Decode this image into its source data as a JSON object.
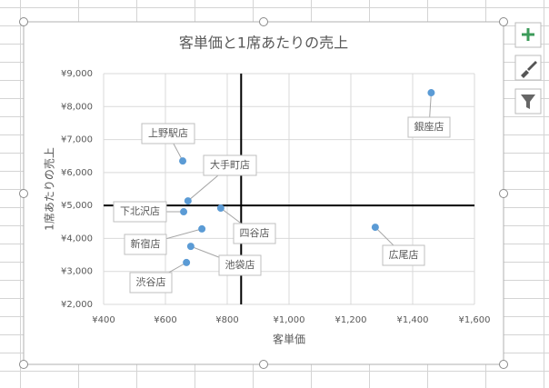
{
  "chart_data": {
    "type": "scatter",
    "title": "客単価と1席あたりの売上",
    "x_label": "客単価",
    "y_label": "1席あたりの売上",
    "point_labels": [
      "銀座店",
      "上野駅店",
      "大手町店",
      "下北沢店",
      "四谷店",
      "新宿店",
      "池袋店",
      "渋谷店",
      "広尾店"
    ],
    "x": [
      1460,
      656,
      673,
      659,
      779,
      718,
      682,
      668,
      1279
    ],
    "values": [
      8420,
      6350,
      5140,
      4810,
      4920,
      4290,
      3760,
      3270,
      4340
    ],
    "color": "#5b9bd5",
    "xlim": [
      400,
      1600
    ],
    "ylim": [
      2000,
      9000
    ],
    "xticks": [
      {
        "value": 400,
        "label": "¥400"
      },
      {
        "value": 600,
        "label": "¥600"
      },
      {
        "value": 800,
        "label": "¥800"
      },
      {
        "value": 1000,
        "label": "¥1,000"
      },
      {
        "value": 1200,
        "label": "¥1,200"
      },
      {
        "value": 1400,
        "label": "¥1,400"
      },
      {
        "value": 1600,
        "label": "¥1,600"
      }
    ],
    "yticks": [
      {
        "value": 2000,
        "label": "¥2,000"
      },
      {
        "value": 3000,
        "label": "¥3,000"
      },
      {
        "value": 4000,
        "label": "¥4,000"
      },
      {
        "value": 5000,
        "label": "¥5,000"
      },
      {
        "value": 6000,
        "label": "¥6,000"
      },
      {
        "value": 7000,
        "label": "¥7,000"
      },
      {
        "value": 8000,
        "label": "¥8,000"
      },
      {
        "value": 9000,
        "label": "¥9,000"
      }
    ],
    "reference_lines": [
      {
        "axis": "x",
        "value": 845
      },
      {
        "axis": "y",
        "value": 5000
      }
    ],
    "grid": true
  }
}
